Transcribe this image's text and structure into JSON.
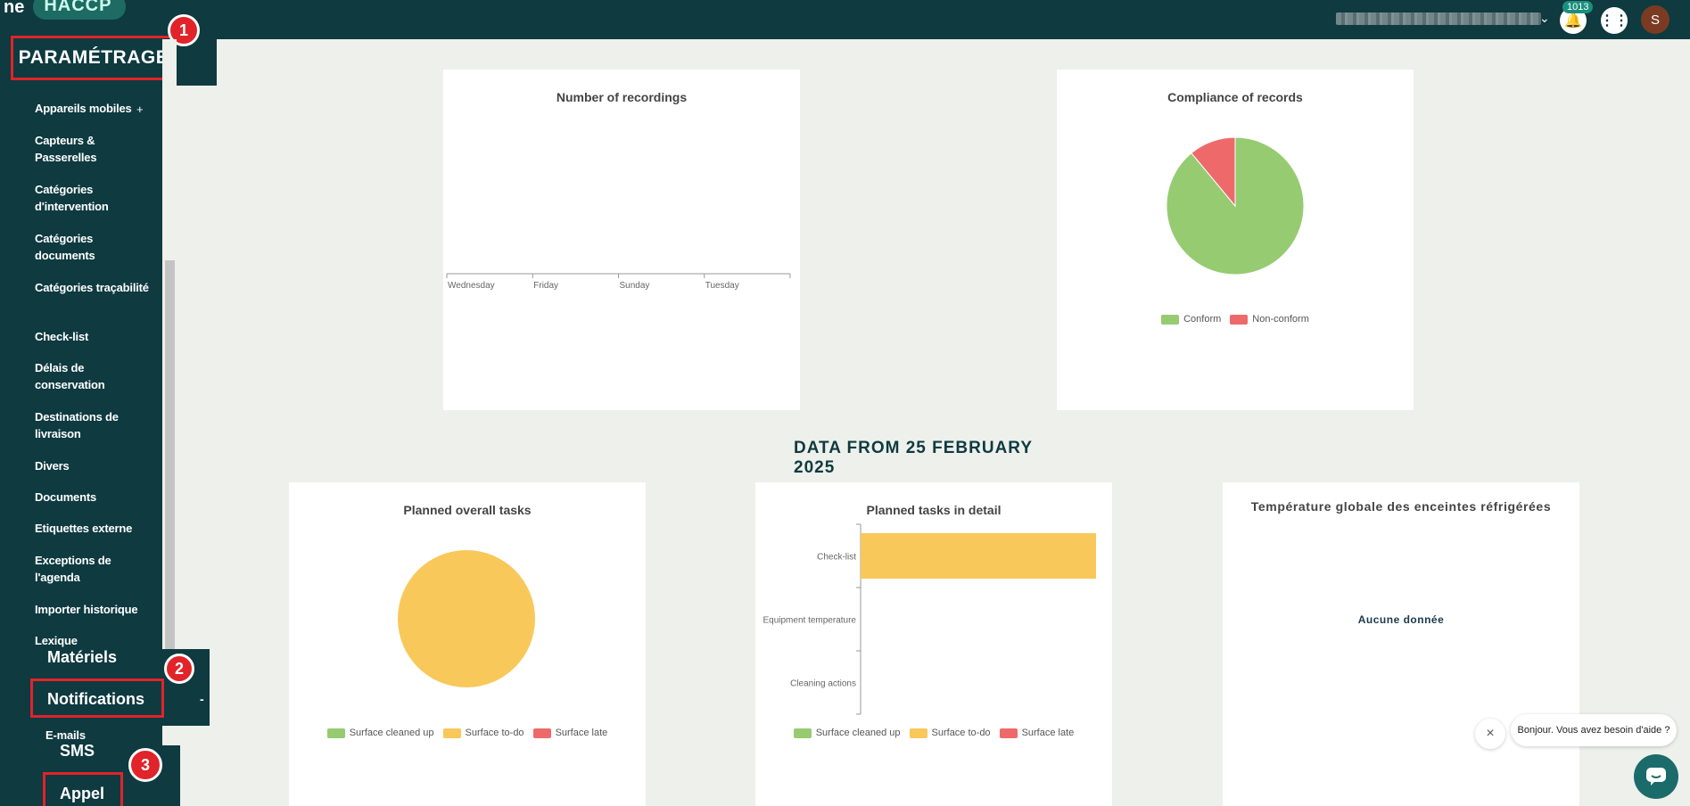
{
  "topbar": {
    "logo_mono": "ne",
    "logo_brand": "HACCP",
    "notification_count": "1013",
    "avatar_initial": "S"
  },
  "sidebar": {
    "section_label": "PARAMÉTRAGE",
    "badge_1": "1",
    "items": [
      "Appareils mobiles",
      "Capteurs & Passerelles",
      "Catégories d'intervention",
      "Catégories documents",
      "Catégories traçabilité",
      "Check-list",
      "Délais de conservation",
      "Destinations de livraison",
      "Divers",
      "Documents",
      "Etiquettes externe",
      "Exceptions de l'agenda",
      "Importer historique",
      "Lexique"
    ],
    "plus": "+",
    "materiels": "Matériels",
    "badge_2": "2",
    "notifications": "Notifications",
    "collapse": "-",
    "emails": "E-mails",
    "sms": "SMS",
    "badge_3": "3",
    "appel": "Appel"
  },
  "cards": {
    "recordings": {
      "title": "Number of recordings"
    },
    "compliance": {
      "title": "Compliance of records",
      "legend": [
        "Conform",
        "Non-conform"
      ]
    },
    "section_title": "DATA FROM 25 FEBRUARY 2025",
    "planned_overall": {
      "title": "Planned overall tasks",
      "legend": [
        "Surface cleaned up",
        "Surface to-do",
        "Surface late"
      ]
    },
    "planned_detail": {
      "title": "Planned tasks in detail",
      "legend": [
        "Surface cleaned up",
        "Surface to-do",
        "Surface late"
      ]
    },
    "temperature": {
      "title": "Température globale des enceintes réfrigérées",
      "empty": "Aucune donnée"
    }
  },
  "colors": {
    "green": "#96cb72",
    "yellow": "#f8c85a",
    "red": "#ee6a6a",
    "sidebar": "#0e3a40"
  },
  "chart_data": [
    {
      "type": "line",
      "title": "Number of recordings",
      "categories": [
        "Wednesday",
        "Friday",
        "Sunday",
        "Tuesday"
      ],
      "series": []
    },
    {
      "type": "pie",
      "title": "Compliance of records",
      "labels": [
        "Conform",
        "Non-conform"
      ],
      "values": [
        89,
        11
      ]
    },
    {
      "type": "pie",
      "title": "Planned overall tasks",
      "labels": [
        "Surface cleaned up",
        "Surface to-do",
        "Surface late"
      ],
      "values": [
        0,
        100,
        0
      ]
    },
    {
      "type": "bar",
      "title": "Planned tasks in detail",
      "orientation": "horizontal",
      "categories": [
        "Check-list",
        "Equipment temperature",
        "Cleaning actions"
      ],
      "series": [
        {
          "name": "Surface cleaned up",
          "values": [
            0,
            0,
            0
          ]
        },
        {
          "name": "Surface to-do",
          "values": [
            1,
            0,
            0
          ]
        },
        {
          "name": "Surface late",
          "values": [
            0,
            0,
            0
          ]
        }
      ]
    }
  ],
  "chat": {
    "close": "×",
    "message": "Bonjour. Vous avez besoin d'aide ?"
  }
}
